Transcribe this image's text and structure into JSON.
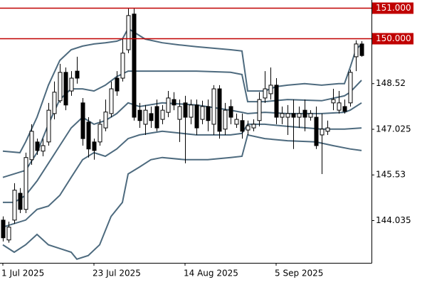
{
  "chart_data": {
    "type": "candlestick",
    "xlim": [
      -0.5,
      64.75
    ],
    "xticks": [
      {
        "value": 0,
        "label": "1 Jul 2025"
      },
      {
        "value": 16,
        "label": "23 Jul 2025"
      },
      {
        "value": 32,
        "label": "14 Aug 2025"
      },
      {
        "value": 48,
        "label": "5 Sep 2025"
      }
    ],
    "ylim": [
      142.65,
      151.26
    ],
    "yticks": [
      144.035,
      145.53,
      {
        "value": 147.025,
        "label": "147.025"
      },
      148.52
    ],
    "levels": [
      {
        "value": 151,
        "label": "151.000"
      },
      {
        "value": 150,
        "label": "150.000"
      }
    ],
    "level_color": "#c00000",
    "candle_color": "#000000",
    "up_fill": "#ffffff",
    "open": [
      144.05,
      143.4,
      144.05,
      144.93,
      144.4,
      146.03,
      146.61,
      146.31,
      146.61,
      147.54,
      147.96,
      148.89,
      148.28,
      148.93,
      147.89,
      147.26,
      146.61,
      146.61,
      147.07,
      147.54,
      148.7,
      148.7,
      149.63,
      150.8,
      147.65,
      147.19,
      147.54,
      147.77,
      147.35,
      147.58,
      148.0,
      147.35,
      147.89,
      147.42,
      147.82,
      147.35,
      147.77,
      147.19,
      148.35,
      147.03,
      147.77,
      147.19,
      147.31,
      147.0,
      147.07,
      147.31,
      148.05,
      148.19,
      148.47,
      147.42,
      147.42,
      147.54,
      147.42,
      147.65,
      147.42,
      147.42,
      146.84,
      146.96,
      147.89,
      147.65,
      147.77,
      147.89,
      149.4,
      149.82
    ],
    "high": [
      144.17,
      144.0,
      145.26,
      145.1,
      146.26,
      147.19,
      146.72,
      146.72,
      147.89,
      148.59,
      149.17,
      149.05,
      148.93,
      149.4,
      148.05,
      147.42,
      146.72,
      147.35,
      148.0,
      148.59,
      148.93,
      149.98,
      150.98,
      150.98,
      147.89,
      147.82,
      147.77,
      148.0,
      147.82,
      148.28,
      148.24,
      148.0,
      148.12,
      148.0,
      148.0,
      147.96,
      148.0,
      148.47,
      148.47,
      147.89,
      148.0,
      147.54,
      147.54,
      147.31,
      147.35,
      148.24,
      148.93,
      149.05,
      148.7,
      147.77,
      147.82,
      148.0,
      147.77,
      148.0,
      147.65,
      147.77,
      147.54,
      147.31,
      148.35,
      148.28,
      148.0,
      148.98,
      149.94,
      149.91
    ],
    "low": [
      143.35,
      143.31,
      143.93,
      144.28,
      144.28,
      145.86,
      146.19,
      146.14,
      146.49,
      147.35,
      147.89,
      147.65,
      148.12,
      148.52,
      146.49,
      146.1,
      146.03,
      146.49,
      146.96,
      147.42,
      148.12,
      148.59,
      149.52,
      147.31,
      147.07,
      146.84,
      147.07,
      146.96,
      147.19,
      147.42,
      147.65,
      146.61,
      145.91,
      147.19,
      146.84,
      147.19,
      146.96,
      146.84,
      146.72,
      146.84,
      147.19,
      147.07,
      146.72,
      146.84,
      146.96,
      147.12,
      147.89,
      148.0,
      147.19,
      147.19,
      146.84,
      146.38,
      147.07,
      146.96,
      147.31,
      146.38,
      145.56,
      146.84,
      147.65,
      147.54,
      147.54,
      147.77,
      148.93,
      149.4
    ],
    "close": [
      143.47,
      143.82,
      145.03,
      144.4,
      146.1,
      146.96,
      146.33,
      146.49,
      147.65,
      148.24,
      148.89,
      147.82,
      148.7,
      148.7,
      146.72,
      146.38,
      146.33,
      147.19,
      147.59,
      148.35,
      148.28,
      149.52,
      150.75,
      147.42,
      147.31,
      147.65,
      147.31,
      147.07,
      147.65,
      148.05,
      147.82,
      147.77,
      147.42,
      147.82,
      147.07,
      147.77,
      147.31,
      148.35,
      146.96,
      147.65,
      147.42,
      147.35,
      146.96,
      147.14,
      147.19,
      148.0,
      148.35,
      148.47,
      147.42,
      147.54,
      147.54,
      147.42,
      147.54,
      147.42,
      147.54,
      146.49,
      147.03,
      147.07,
      148.0,
      147.89,
      147.61,
      148.89,
      149.82,
      149.44
    ],
    "series": [
      {
        "color": "#4d6a7e",
        "x": [
          0,
          3,
          4,
          6,
          8,
          10,
          12,
          14,
          16,
          18,
          20,
          21,
          22,
          23,
          25,
          28,
          31,
          34,
          37,
          40,
          42,
          43,
          46,
          48,
          50,
          53,
          56,
          59,
          60,
          61,
          62,
          63
        ],
        "values": [
          146.31,
          146.26,
          146.61,
          147.42,
          148.47,
          149.28,
          149.63,
          149.75,
          149.82,
          149.86,
          149.91,
          149.98,
          150.33,
          150.21,
          149.98,
          149.86,
          149.79,
          149.73,
          149.68,
          149.63,
          149.59,
          148.28,
          148.28,
          148.42,
          148.47,
          148.52,
          148.47,
          148.52,
          148.52,
          149.05,
          149.63,
          149.82
        ]
      },
      {
        "color": "#4d6a7e",
        "x": [
          0,
          4,
          6,
          8,
          10,
          12,
          14,
          16,
          18,
          20,
          22,
          24,
          28,
          34,
          40,
          42,
          43,
          46,
          50,
          56,
          60,
          61,
          63
        ],
        "values": [
          145.45,
          145.68,
          146.26,
          147.19,
          148.0,
          148.35,
          148.35,
          148.28,
          148.47,
          148.75,
          148.93,
          148.93,
          148.93,
          148.93,
          148.89,
          148.82,
          147.93,
          147.93,
          148.0,
          147.96,
          148.12,
          148.24,
          148.63
        ]
      },
      {
        "color": "#4d6a7e",
        "x": [
          0,
          2,
          4,
          6,
          8,
          10,
          12,
          14,
          16,
          18,
          20,
          22,
          24,
          28,
          34,
          40,
          42,
          43,
          46,
          50,
          56,
          60,
          61,
          63
        ],
        "values": [
          144.63,
          144.63,
          144.86,
          145.33,
          145.91,
          146.49,
          147.07,
          147.42,
          147.19,
          147.31,
          147.54,
          147.89,
          147.77,
          147.89,
          147.82,
          147.65,
          147.58,
          147.54,
          147.58,
          147.54,
          147.54,
          147.58,
          147.65,
          147.89
        ]
      },
      {
        "color": "#4d6a7e",
        "x": [
          0,
          4,
          6,
          8,
          10,
          12,
          14,
          16,
          18,
          20,
          22,
          24,
          28,
          34,
          40,
          42,
          43,
          46,
          50,
          56,
          60,
          63
        ],
        "values": [
          143.82,
          144.05,
          144.4,
          144.51,
          144.86,
          145.45,
          146.03,
          146.26,
          146.14,
          146.38,
          146.72,
          146.84,
          146.96,
          146.84,
          146.84,
          146.89,
          147.19,
          147.19,
          147.12,
          147.03,
          147.03,
          147.07
        ]
      },
      {
        "color": "#4d6a7e",
        "x": [
          0,
          2,
          4,
          6,
          8,
          10,
          12,
          13,
          15,
          17,
          19,
          21,
          22,
          24,
          26,
          28,
          32,
          36,
          40,
          42,
          43,
          46,
          50,
          55,
          58,
          61,
          63
        ],
        "values": [
          143.24,
          143.0,
          143.24,
          143.58,
          143.24,
          143.12,
          143.0,
          142.77,
          142.89,
          143.24,
          144.17,
          144.63,
          145.56,
          145.79,
          146.03,
          146.1,
          146.03,
          146.03,
          146.1,
          146.14,
          146.84,
          146.72,
          146.65,
          146.61,
          146.49,
          146.38,
          146.33
        ]
      }
    ]
  }
}
